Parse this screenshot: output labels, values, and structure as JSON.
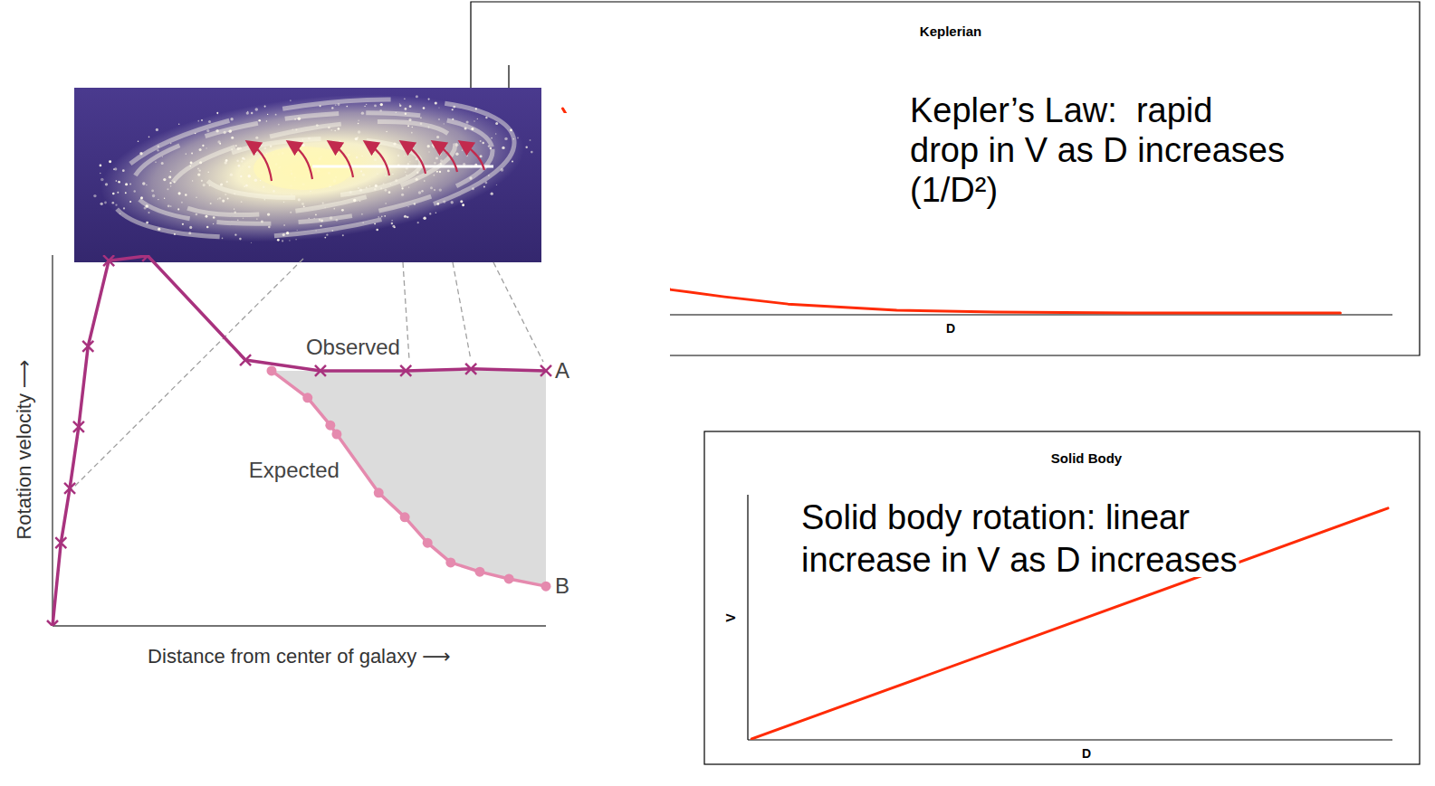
{
  "chart_data": [
    {
      "type": "line",
      "x_label": "Distance from center of galaxy ⟶",
      "y_label": "Rotation velocity ⟶",
      "xlim": [
        0,
        100
      ],
      "ylim": [
        0,
        100
      ],
      "tick_labels": false,
      "annotations": [
        "A",
        "B"
      ],
      "series": [
        {
          "name": "Observed",
          "color": "#a8327e",
          "marker": "x",
          "x": [
            0,
            1.7,
            3.5,
            5.3,
            7.2,
            11.4,
            19.3,
            39.1,
            54.3,
            71.6,
            84.8,
            100
          ],
          "values": [
            0,
            22.4,
            37.1,
            53.7,
            75.4,
            98.5,
            99.8,
            71.7,
            68.8,
            68.8,
            69.3,
            68.8
          ]
        },
        {
          "name": "Expected",
          "color": "#e58aae",
          "marker": "circle",
          "x": [
            44.4,
            51.7,
            56.3,
            57.6,
            66.1,
            71.4,
            76.0,
            80.7,
            86.6,
            92.5,
            100
          ],
          "values": [
            68.8,
            61.5,
            54.1,
            51.7,
            35.9,
            29.3,
            22.4,
            17.1,
            14.6,
            12.7,
            10.7
          ]
        }
      ]
    },
    {
      "type": "line",
      "title": "Keplerian",
      "x_label": "D",
      "xlim": [
        0,
        100
      ],
      "ylim": [
        0,
        100
      ],
      "tick_labels": false,
      "annotations": [
        "Kepler’s Law:  rapid",
        "drop in V as D increases",
        "(1/D²)"
      ],
      "series": [
        {
          "color": "#ff2b06",
          "x": [
            6.1,
            18.2,
            24.4,
            31.6,
            43.9,
            55.1,
            70.5,
            94.1
          ],
          "values": [
            82.6,
            10.1,
            7.2,
            4.3,
            1.8,
            1.1,
            0.7,
            0.7
          ]
        }
      ]
    },
    {
      "type": "line",
      "title": "Solid Body",
      "x_label": "D",
      "y_label": "V",
      "xlim": [
        0,
        100
      ],
      "ylim": [
        0,
        100
      ],
      "tick_labels": false,
      "annotations": [
        "Solid body rotation: linear",
        "increase in V as D increases"
      ],
      "series": [
        {
          "color": "#ff2b06",
          "x": [
            0.6,
            99.3
          ],
          "values": [
            0.4,
            94.5
          ]
        }
      ]
    }
  ]
}
